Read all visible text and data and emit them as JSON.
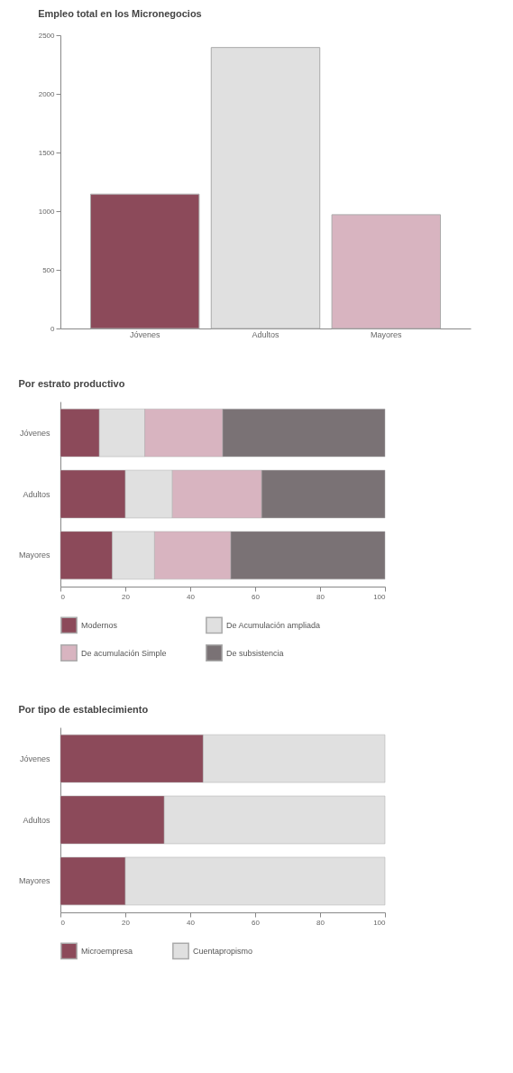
{
  "chart_data": [
    {
      "type": "bar",
      "title": "Empleo total en los Micronegocios",
      "categories": [
        "Jóvenes",
        "Adultos",
        "Mayores"
      ],
      "values": [
        1145,
        2395,
        970
      ],
      "colors": [
        "#8c4a5a",
        "#e0e0e0",
        "#d8b4c0"
      ],
      "ylim": [
        0,
        2500
      ],
      "yticks": [
        0,
        500,
        1000,
        1500,
        2000,
        2500
      ]
    },
    {
      "type": "bar",
      "title": "Por estrato productivo",
      "orientation": "horizontal",
      "stacked": true,
      "categories": [
        "Jóvenes",
        "Adultos",
        "Mayores"
      ],
      "series": [
        {
          "name": "Modernos",
          "color": "#8c4a5a",
          "values": [
            12,
            20,
            16
          ]
        },
        {
          "name": "De Acumulación ampliada",
          "color": "#e0e0e0",
          "values": [
            14,
            14.5,
            13
          ]
        },
        {
          "name": "De acumulación Simple",
          "color": "#d8b4c0",
          "values": [
            24,
            27.5,
            23.5
          ]
        },
        {
          "name": "De subsistencia",
          "color": "#7a7275",
          "values": [
            50,
            38,
            47.5
          ]
        }
      ],
      "xlim": [
        0,
        100
      ],
      "xticks": [
        0,
        20,
        40,
        60,
        80,
        100
      ],
      "legend": "bottom"
    },
    {
      "type": "bar",
      "title": "Por tipo de establecimiento",
      "orientation": "horizontal",
      "stacked": true,
      "categories": [
        "Jóvenes",
        "Adultos",
        "Mayores"
      ],
      "series": [
        {
          "name": "Microempresa",
          "color": "#8c4a5a",
          "values": [
            44,
            32,
            20
          ]
        },
        {
          "name": "Cuentapropismo",
          "color": "#e0e0e0",
          "values": [
            56,
            68,
            80
          ]
        }
      ],
      "xlim": [
        0,
        100
      ],
      "xticks": [
        0,
        20,
        40,
        60,
        80,
        100
      ],
      "legend": "bottom"
    }
  ]
}
